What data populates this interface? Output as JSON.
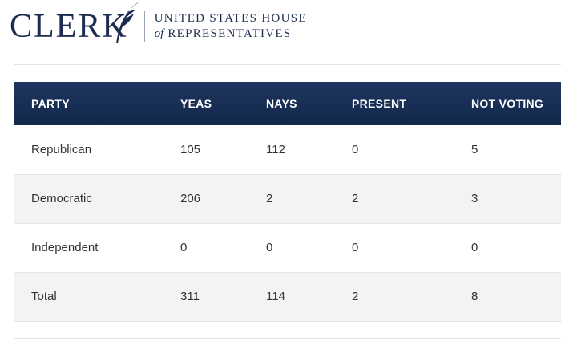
{
  "header": {
    "logo_word": "CLERK",
    "logo_line1": "UNITED STATES HOUSE",
    "logo_of": "of",
    "logo_line2": "REPRESENTATIVES"
  },
  "table": {
    "columns": [
      "PARTY",
      "YEAS",
      "NAYS",
      "PRESENT",
      "NOT VOTING"
    ],
    "rows": [
      [
        "Republican",
        "105",
        "112",
        "0",
        "5"
      ],
      [
        "Democratic",
        "206",
        "2",
        "2",
        "3"
      ],
      [
        "Independent",
        "0",
        "0",
        "0",
        "0"
      ],
      [
        "Total",
        "311",
        "114",
        "2",
        "8"
      ]
    ]
  },
  "colors": {
    "navy": "#1c2d4f",
    "header_bg": "#1a3058",
    "row_shade": "#f3f3f3"
  }
}
